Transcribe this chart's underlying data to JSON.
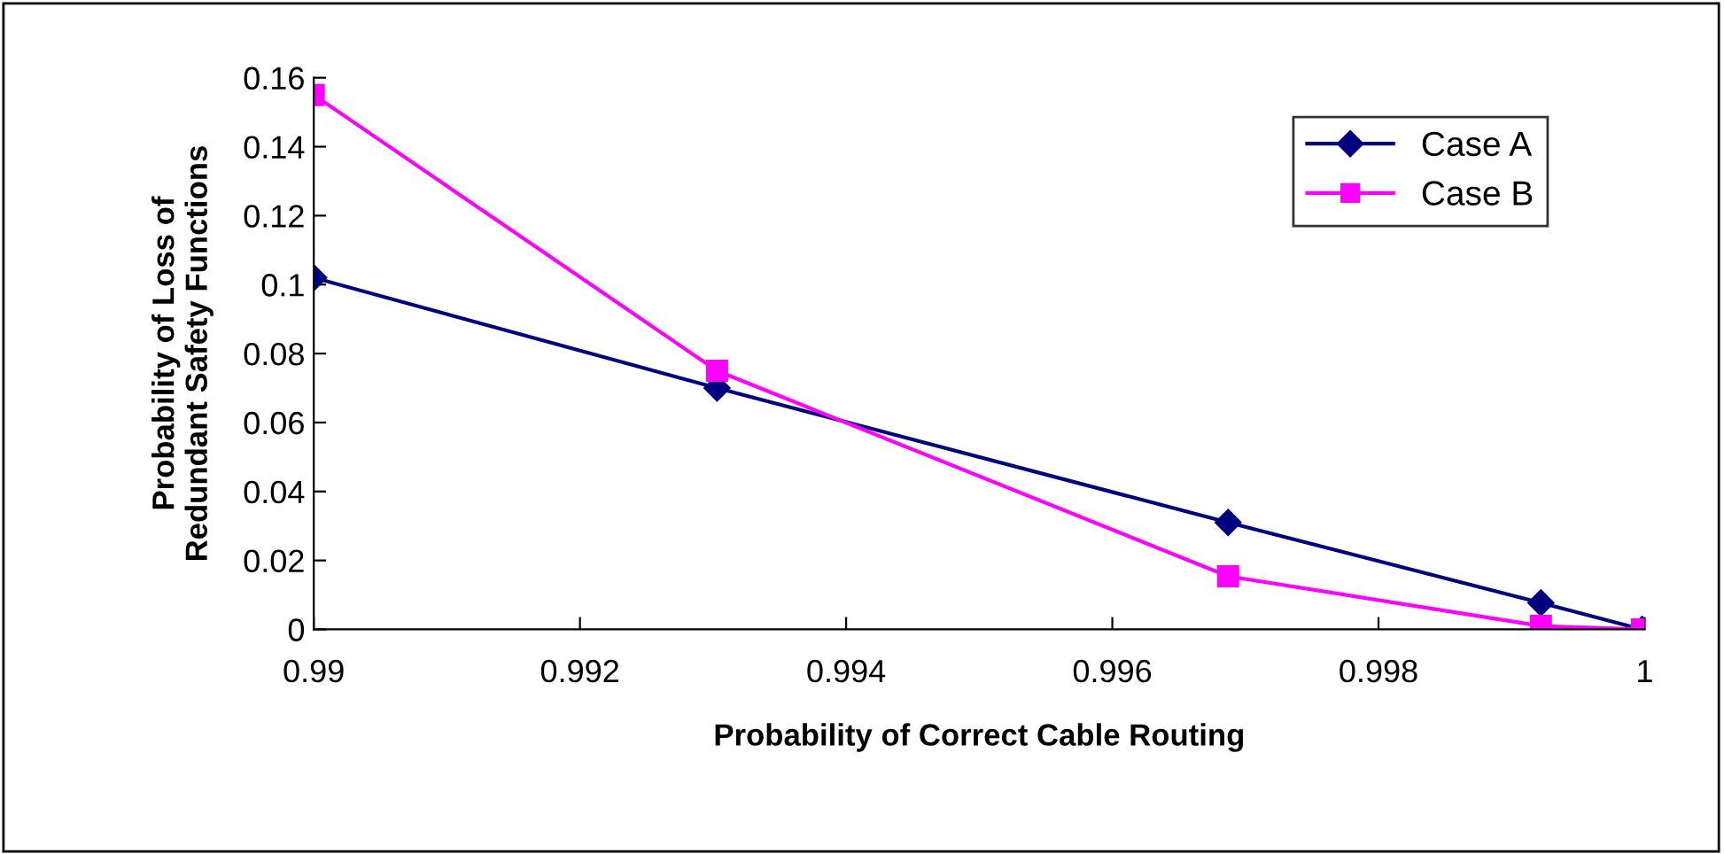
{
  "chart_data": {
    "type": "line",
    "xlabel": "Probability of Correct Cable Routing",
    "ylabel": "Probability of Loss of\nRedundant Safety Functions",
    "x": [
      0.99,
      0.99303,
      0.99687,
      0.99922,
      0.99998
    ],
    "series": [
      {
        "name": "Case A",
        "color": "#000080",
        "marker": "diamond",
        "values": [
          0.102,
          0.07,
          0.031,
          0.0077,
          0
        ]
      },
      {
        "name": "Case B",
        "color": "#ff00ff",
        "marker": "square",
        "values": [
          0.155,
          0.075,
          0.0154,
          0.001,
          0
        ]
      }
    ],
    "xlim": [
      0.99,
      1
    ],
    "xticks": [
      0.99,
      0.992,
      0.994,
      0.996,
      0.998,
      1
    ],
    "ylim": [
      0,
      0.16
    ],
    "yticks": [
      0,
      0.02,
      0.04,
      0.06,
      0.08,
      0.1,
      0.12,
      0.14,
      0.16
    ],
    "legend": "top right",
    "grid": false,
    "line_style": "solid"
  }
}
